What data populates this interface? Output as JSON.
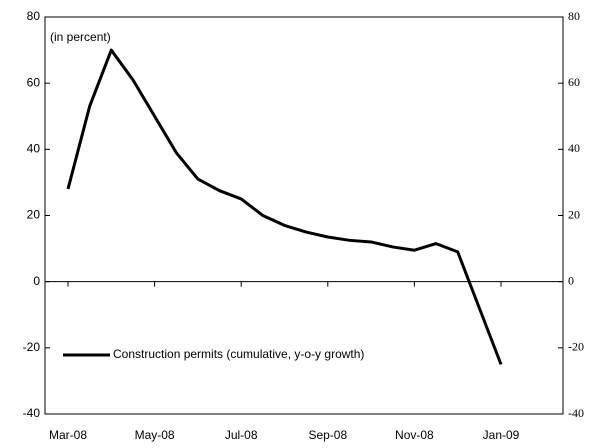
{
  "chart_data": {
    "type": "line",
    "annotation": "(in percent)",
    "categories": [
      "Mar-08",
      null,
      null,
      null,
      "May-08",
      null,
      null,
      null,
      "Jul-08",
      null,
      null,
      null,
      "Sep-08",
      null,
      null,
      null,
      "Nov-08",
      null,
      null,
      null,
      "Jan-09"
    ],
    "series": [
      {
        "name": "Construction permits (cumulative, y-o-y growth)",
        "color": "#000000",
        "values": [
          28,
          53,
          70,
          61,
          50,
          39,
          31,
          27.5,
          25,
          20,
          17,
          15,
          13.5,
          12.5,
          12,
          10.5,
          9.5,
          11.5,
          9,
          -8,
          -25
        ]
      }
    ],
    "ylim": [
      -40,
      80
    ],
    "yticks": [
      -40,
      -20,
      0,
      20,
      40,
      60,
      80
    ],
    "y2lim": [
      -40,
      80
    ],
    "y2ticks": [
      -40,
      -20,
      0,
      20,
      40,
      60,
      80
    ],
    "legend": "lower-left"
  }
}
